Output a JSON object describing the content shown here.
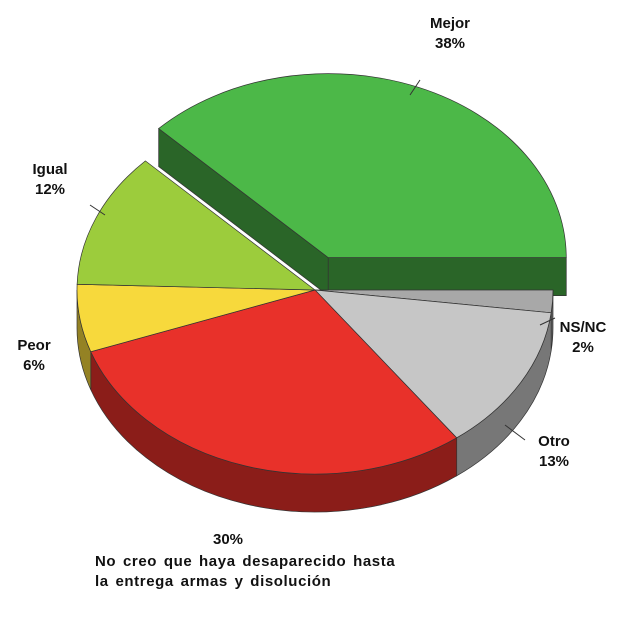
{
  "chart_data": {
    "type": "pie",
    "categories": [
      "Mejor",
      "NS/NC",
      "Otro",
      "No creo que haya desaparecido hasta la entrega armas y disolución",
      "Peor",
      "Igual"
    ],
    "values": [
      38,
      2,
      13,
      30,
      6,
      12
    ],
    "value_labels": [
      "38%",
      "2%",
      "13%",
      "30%",
      "6%",
      "12%"
    ],
    "colors": [
      "#4cb848",
      "#a8a8a8",
      "#c6c6c6",
      "#e8312a",
      "#f7d93c",
      "#9ccc3c"
    ],
    "exploded": "Mejor"
  }
}
